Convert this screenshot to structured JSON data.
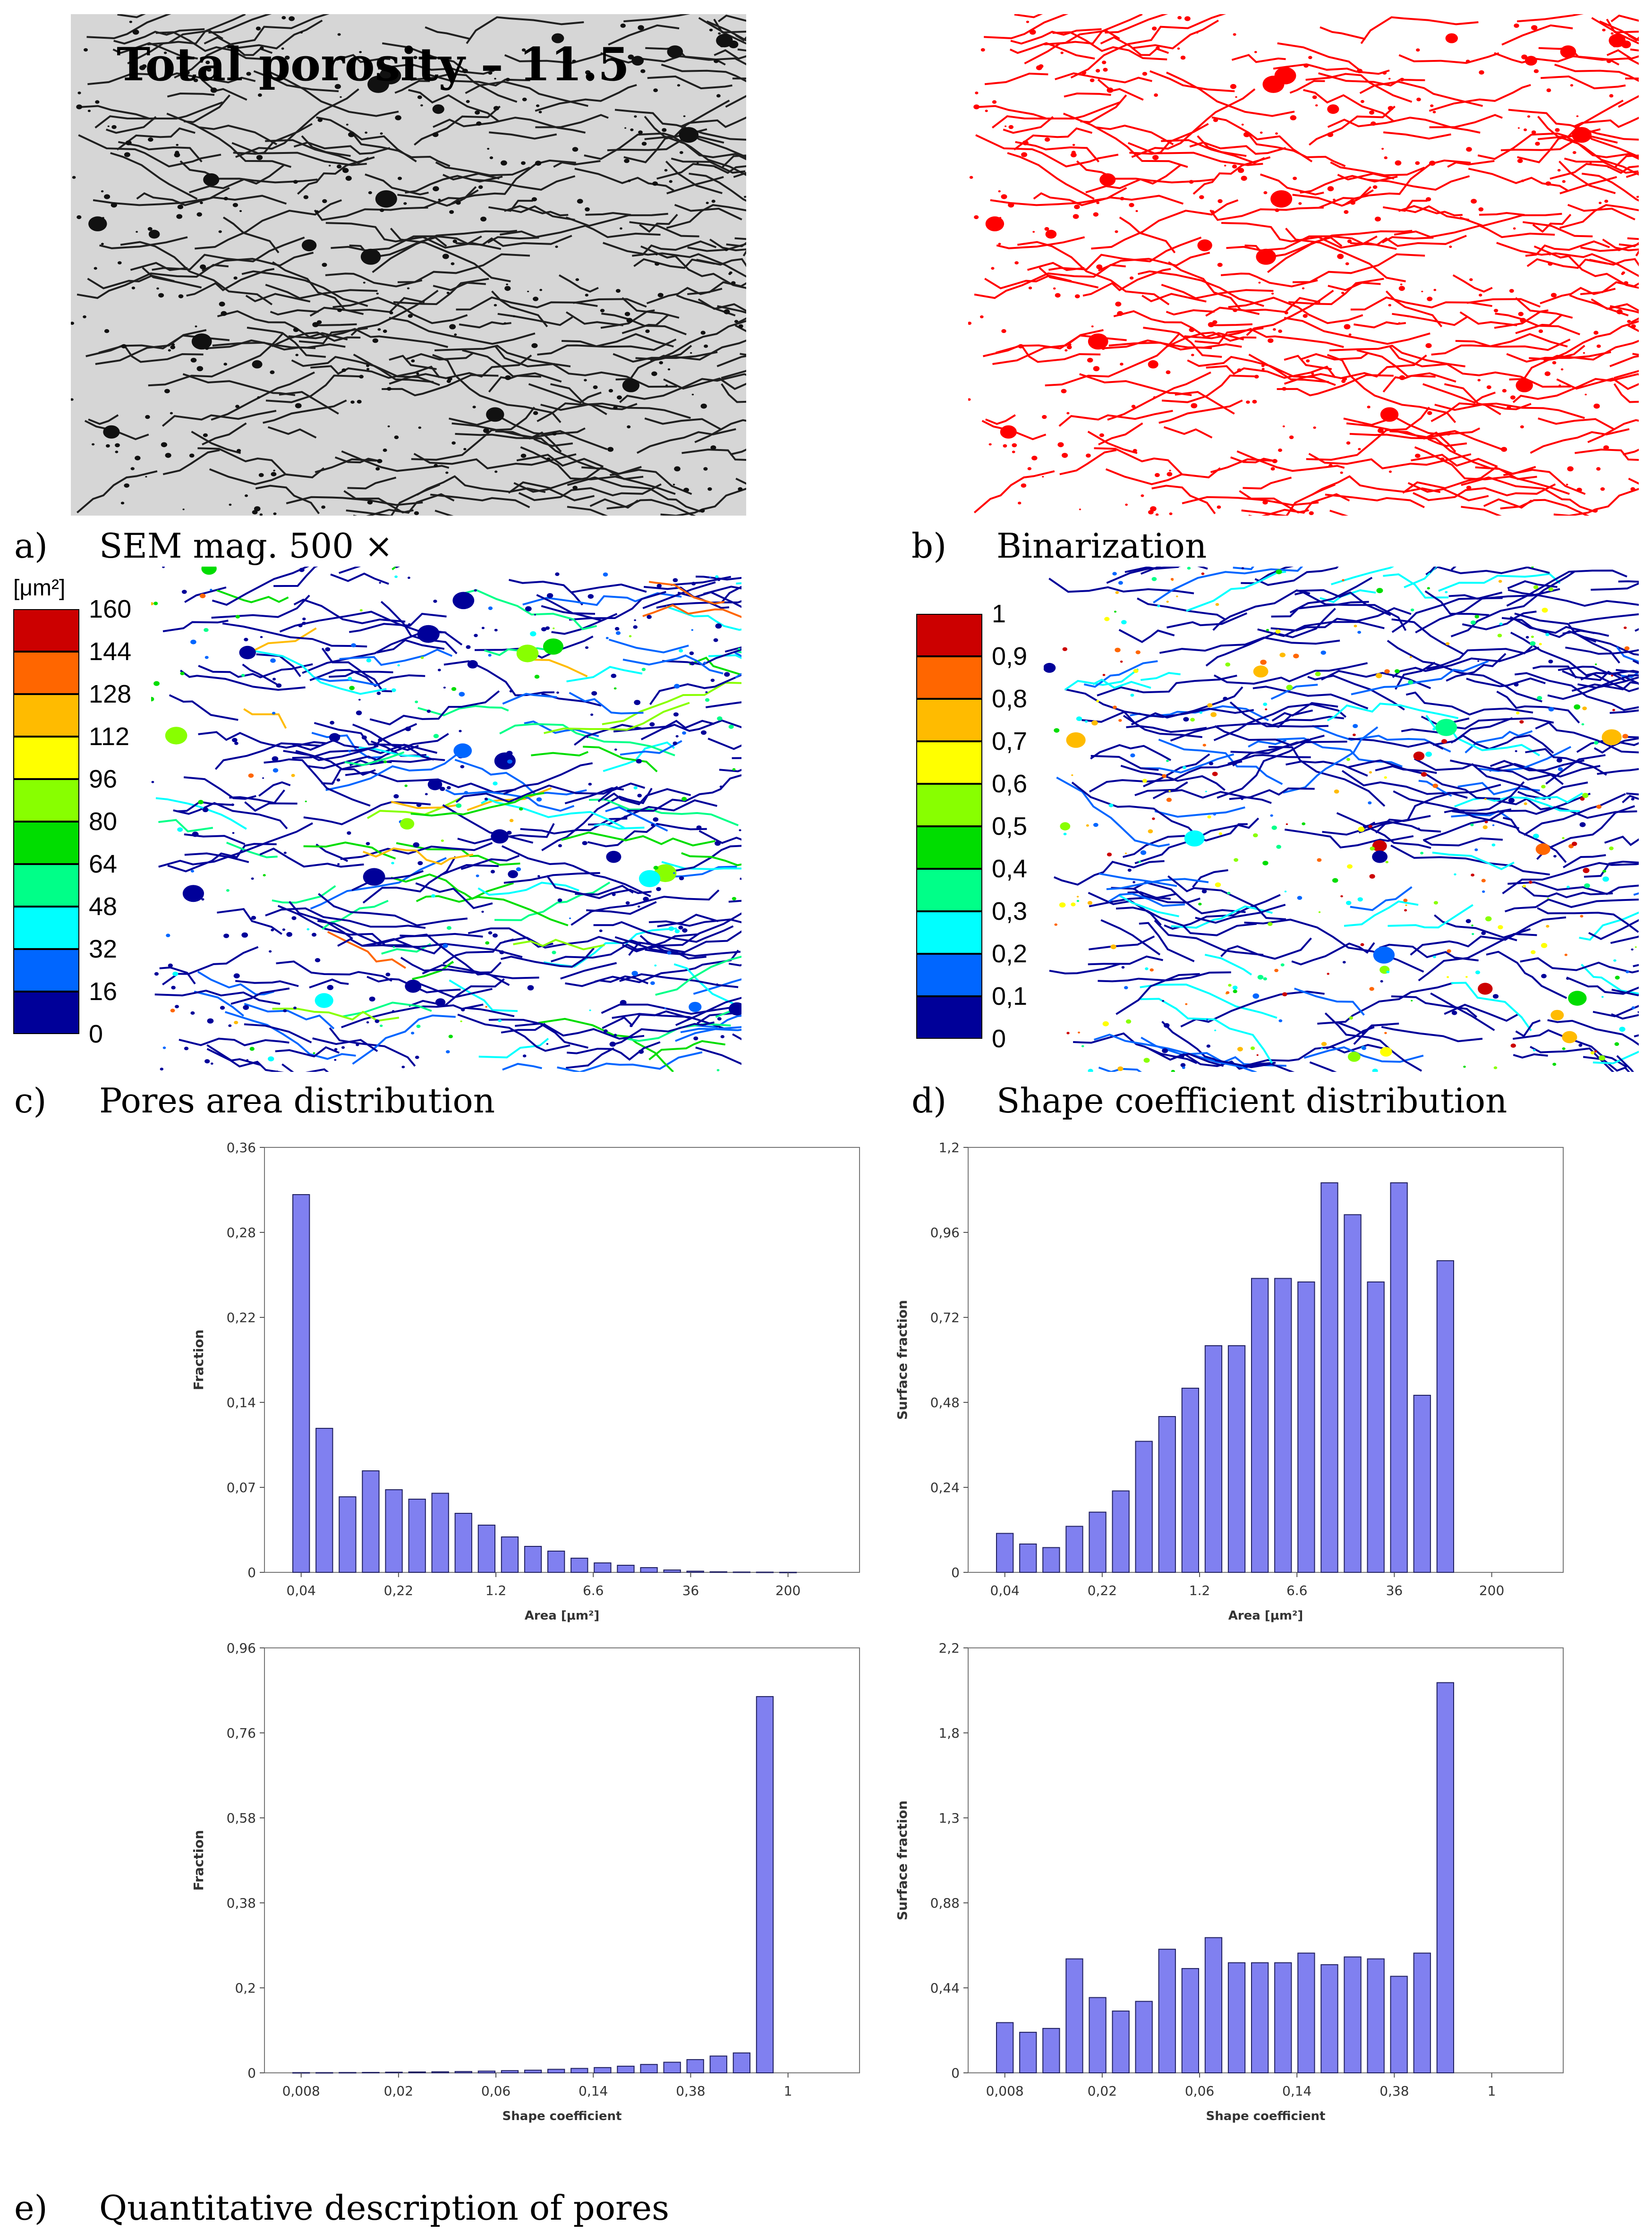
{
  "colors": {
    "sem_background": "#d6d6d6",
    "binary_pore": "#ff0000",
    "bar_fill": "#8080f0",
    "bar_stroke": "#202060",
    "scale": [
      "#000099",
      "#0066ff",
      "#00ffff",
      "#00ff88",
      "#00dd00",
      "#88ff00",
      "#ffff00",
      "#ffbb00",
      "#ff6600",
      "#cc0000"
    ]
  },
  "panels": {
    "a": {
      "label": "a)",
      "caption": "SEM mag. 500 ×",
      "overlay": "Total  porosity  –  11.5"
    },
    "b": {
      "label": "b)",
      "caption": "Binarization"
    },
    "c": {
      "label": "c)",
      "caption": "Pores area distribution",
      "unit": "[μm²]",
      "scale_labels": [
        "160",
        "144",
        "128",
        "112",
        "96",
        "80",
        "64",
        "48",
        "32",
        "16",
        "0"
      ]
    },
    "d": {
      "label": "d)",
      "caption": "Shape coefficient distribution",
      "scale_labels": [
        "1",
        "0,9",
        "0,8",
        "0,7",
        "0,6",
        "0,5",
        "0,4",
        "0,3",
        "0,2",
        "0,1",
        "0"
      ]
    },
    "e": {
      "label": "e)",
      "caption": "Quantitative description of pores"
    }
  },
  "chart_data": [
    {
      "type": "bar",
      "title": "",
      "xlabel": "Area [μm²]",
      "ylabel": "Fraction",
      "ylim": [
        0,
        0.36
      ],
      "yticks": [
        "0",
        "0,07",
        "0,14",
        "0,22",
        "0,28",
        "0,36"
      ],
      "xticks": [
        "0,04",
        "0,22",
        "1.2",
        "6.6",
        "36",
        "200"
      ],
      "values": [
        0.32,
        0.122,
        0.064,
        0.086,
        0.07,
        0.062,
        0.067,
        0.05,
        0.04,
        0.03,
        0.022,
        0.018,
        0.012,
        0.008,
        0.006,
        0.004,
        0.002,
        0.001,
        0.0005,
        0.0003,
        0.0002,
        0.0001
      ]
    },
    {
      "type": "bar",
      "title": "",
      "xlabel": "Area [μm²]",
      "ylabel": "Surface fraction",
      "ylim": [
        0,
        1.2
      ],
      "yticks": [
        "0",
        "0,24",
        "0,48",
        "0,72",
        "0,96",
        "1,2"
      ],
      "xticks": [
        "0,04",
        "0,22",
        "1.2",
        "6.6",
        "36",
        "200"
      ],
      "values": [
        0.11,
        0.08,
        0.07,
        0.13,
        0.17,
        0.23,
        0.37,
        0.44,
        0.52,
        0.64,
        0.64,
        0.83,
        0.83,
        0.82,
        1.1,
        1.01,
        0.82,
        1.1,
        0.5,
        0.88
      ]
    },
    {
      "type": "bar",
      "title": "",
      "xlabel": "Shape coefficient",
      "ylabel": "Fraction",
      "ylim": [
        0,
        0.96
      ],
      "yticks": [
        "0",
        "0,2",
        "0,38",
        "0,58",
        "0,76",
        "0,96"
      ],
      "xticks": [
        "0,008",
        "0,02",
        "0,06",
        "0,14",
        "0,38",
        "1"
      ],
      "values": [
        0.0005,
        0.0005,
        0.0007,
        0.001,
        0.0015,
        0.002,
        0.0025,
        0.003,
        0.004,
        0.005,
        0.006,
        0.008,
        0.01,
        0.012,
        0.015,
        0.019,
        0.024,
        0.03,
        0.038,
        0.045,
        0.85
      ]
    },
    {
      "type": "bar",
      "title": "",
      "xlabel": "Shape coefficient",
      "ylabel": "Surface fraction",
      "ylim": [
        0,
        2.2
      ],
      "yticks": [
        "0",
        "0,44",
        "0,88",
        "1,3",
        "1,8",
        "2,2"
      ],
      "xticks": [
        "0,008",
        "0,02",
        "0,06",
        "0,14",
        "0,38",
        "1"
      ],
      "values": [
        0.26,
        0.21,
        0.23,
        0.59,
        0.39,
        0.32,
        0.37,
        0.64,
        0.54,
        0.7,
        0.57,
        0.57,
        0.57,
        0.62,
        0.56,
        0.6,
        0.59,
        0.5,
        0.62,
        2.02
      ]
    }
  ]
}
